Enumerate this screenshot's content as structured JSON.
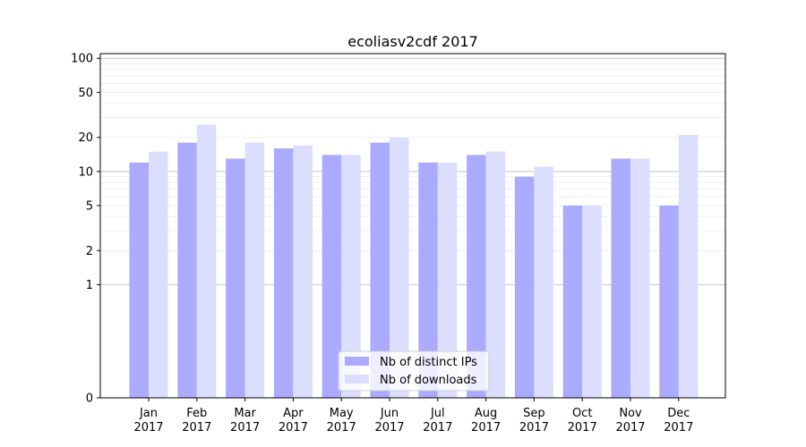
{
  "chart_data": {
    "type": "bar",
    "title": "ecoliasv2cdf 2017",
    "xlabel": "",
    "ylabel": "",
    "yscale": "symlog",
    "ylim": [
      0,
      110
    ],
    "categories": [
      "Jan\n2017",
      "Feb\n2017",
      "Mar\n2017",
      "Apr\n2017",
      "May\n2017",
      "Jun\n2017",
      "Jul\n2017",
      "Aug\n2017",
      "Sep\n2017",
      "Oct\n2017",
      "Nov\n2017",
      "Dec\n2017"
    ],
    "yticks": [
      0,
      1,
      2,
      5,
      10,
      20,
      50,
      100
    ],
    "series": [
      {
        "name": "Nb of distinct IPs",
        "color": "#aaaaff",
        "values": [
          12,
          18,
          13,
          16,
          14,
          18,
          12,
          14,
          9,
          5,
          13,
          5
        ]
      },
      {
        "name": "Nb of downloads",
        "color": "#ddddff",
        "values": [
          15,
          26,
          18,
          17,
          14,
          20,
          12,
          15,
          11,
          5,
          13,
          21
        ]
      }
    ],
    "legend": {
      "position": "bottom-center"
    },
    "grid": {
      "horizontal": true,
      "minor": true
    }
  }
}
